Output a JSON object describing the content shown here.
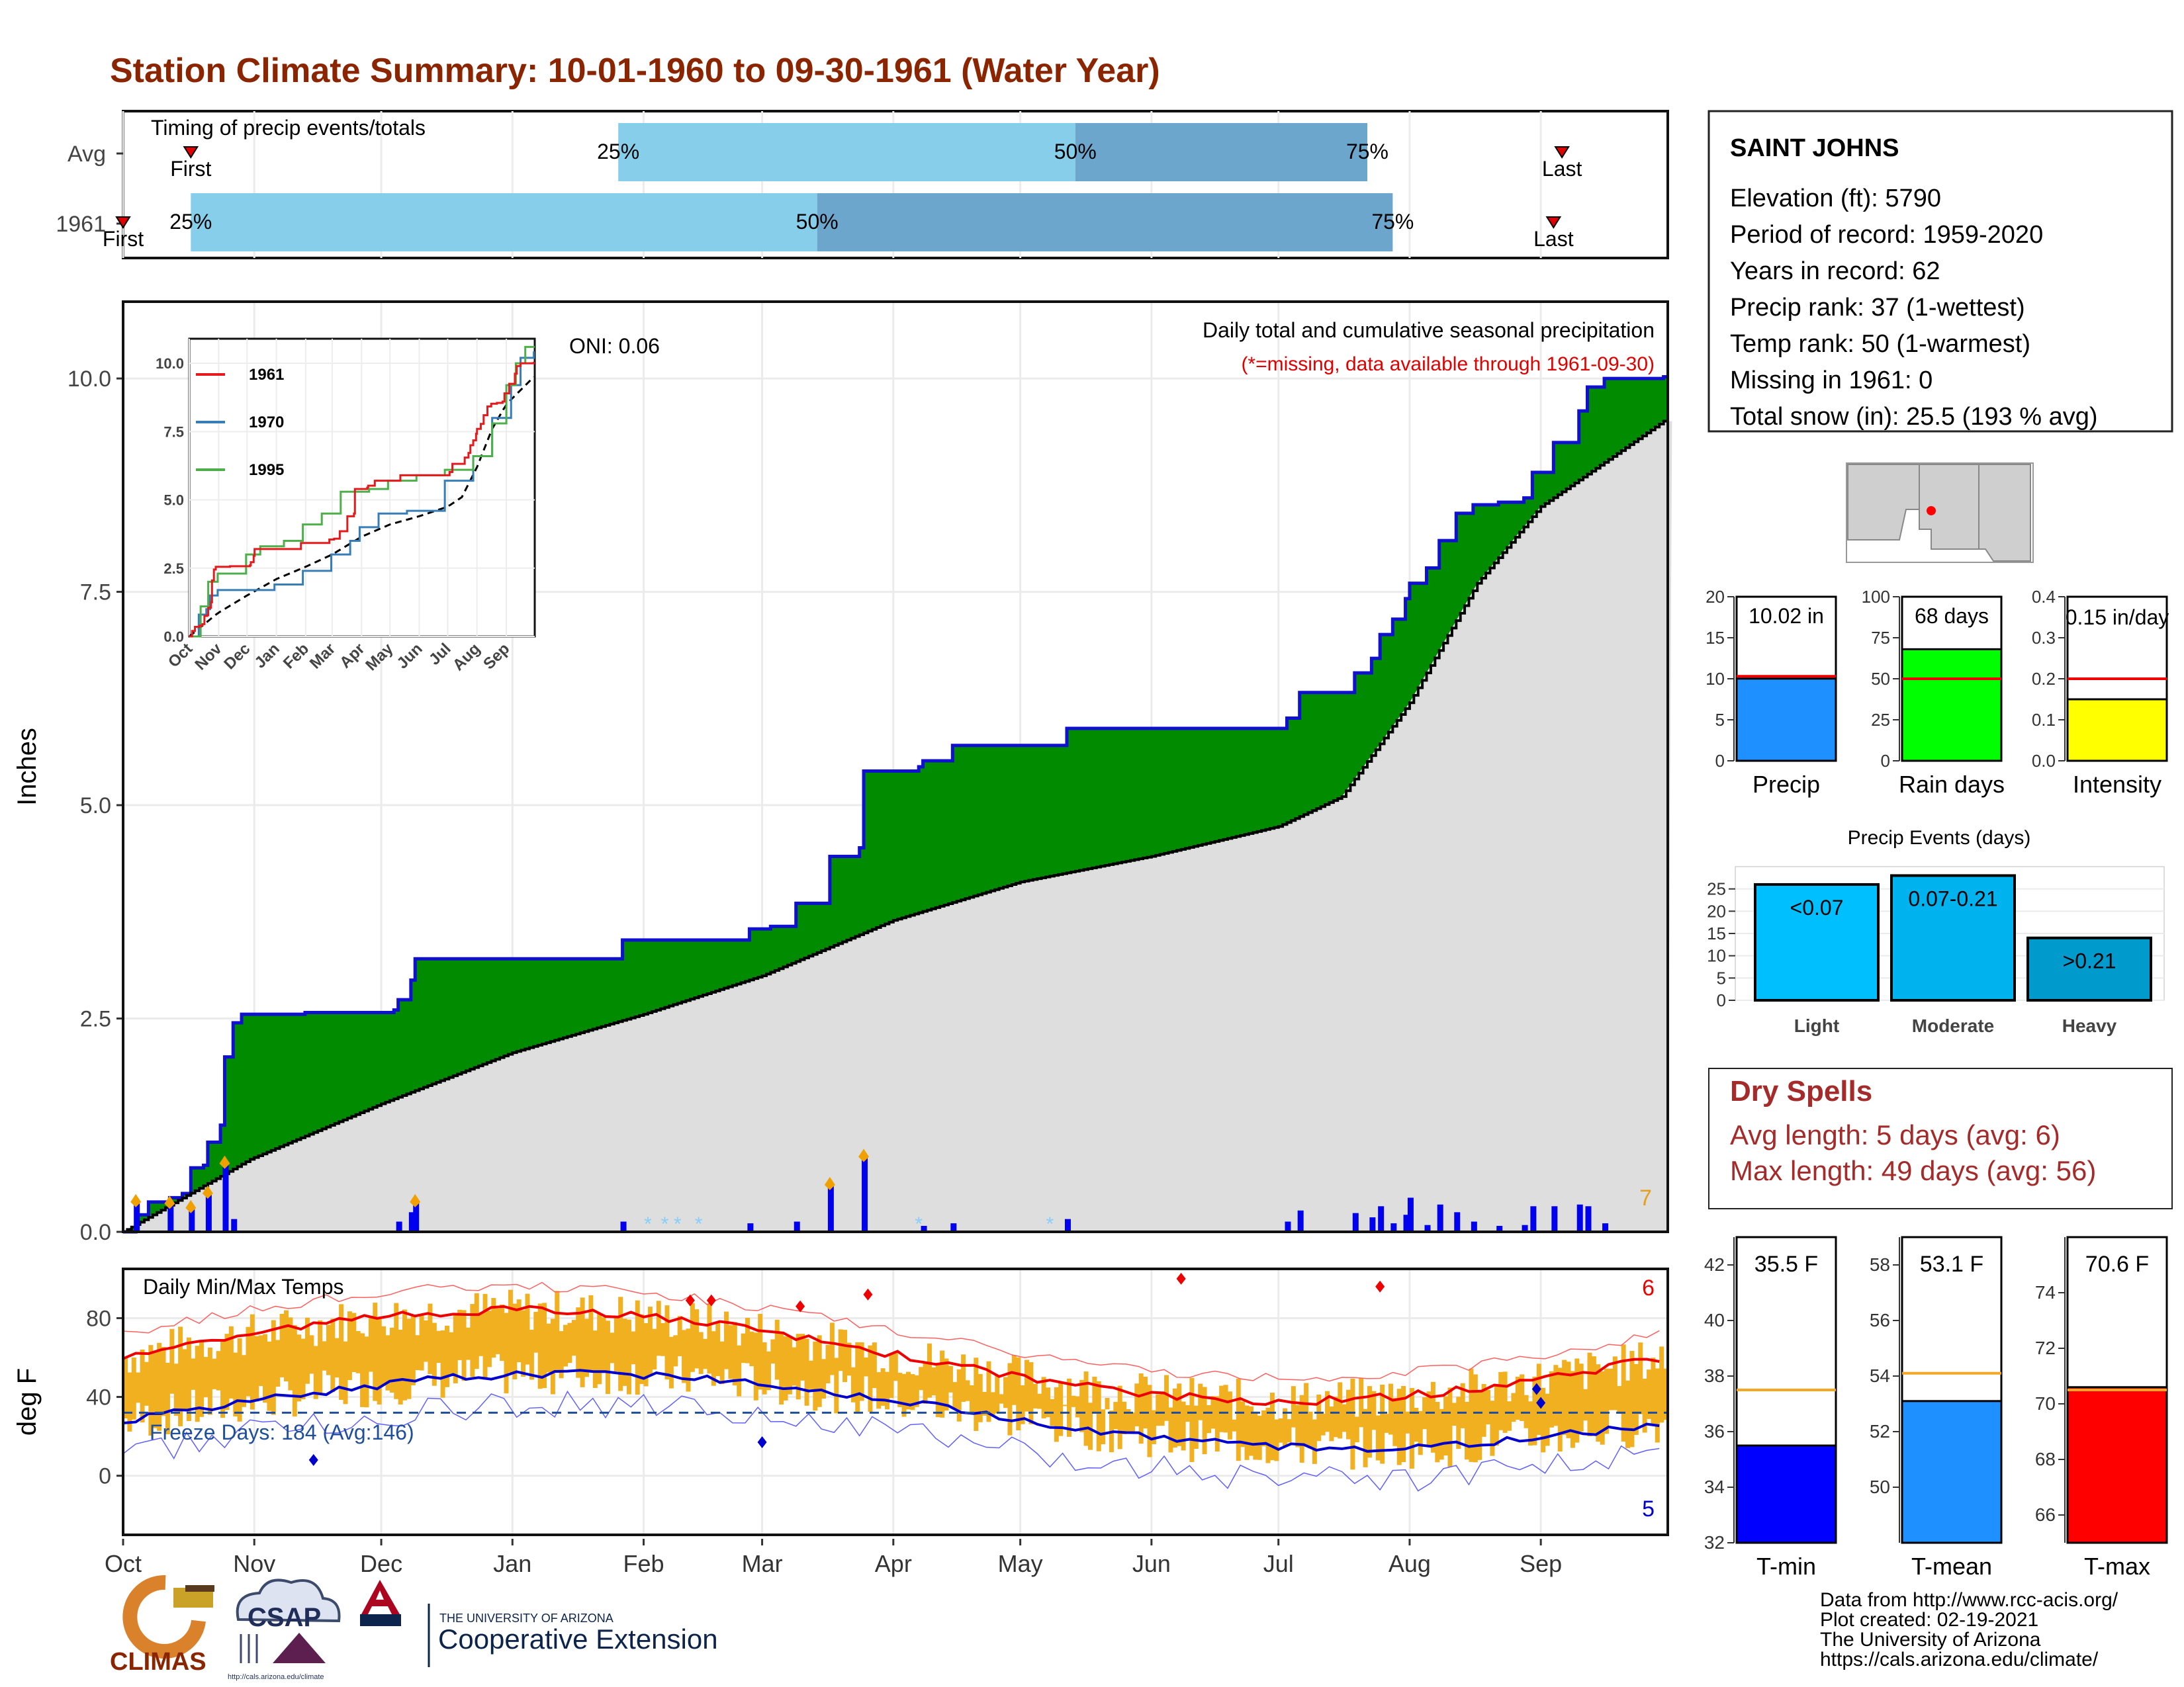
{
  "title": "Station Climate Summary: 10-01-1960 to 09-30-1961 (Water Year)",
  "timing": {
    "title": "Timing of precip events/totals",
    "rows": [
      {
        "label": "Avg",
        "first_label": "First",
        "last_label": "Last",
        "first": 16,
        "p25": 117,
        "p50": 225,
        "p75": 294,
        "last": 340
      },
      {
        "label": "1961",
        "first_label": "First",
        "last_label": "Last",
        "first": 0,
        "p25": 16,
        "p50": 164,
        "p75": 300,
        "last": 338
      }
    ],
    "pct_labels": [
      "25%",
      "50%",
      "75%"
    ]
  },
  "months": [
    "Oct",
    "Nov",
    "Dec",
    "Jan",
    "Feb",
    "Mar",
    "Apr",
    "May",
    "Jun",
    "Jul",
    "Aug",
    "Sep"
  ],
  "month_starts": [
    0,
    31,
    61,
    92,
    123,
    151,
    182,
    212,
    243,
    273,
    304,
    335
  ],
  "precip": {
    "ylabel": "Inches",
    "yticks": [
      "0.0",
      "2.5",
      "5.0",
      "7.5",
      "10.0"
    ],
    "ytick_values": [
      0,
      2.5,
      5,
      7.5,
      10
    ],
    "annotation_title": "Daily total and cumulative seasonal precipitation",
    "annotation_missing": "(*=missing, data available through 1961-09-30)",
    "oni": "ONI: 0.06",
    "corner_count": "7",
    "cumulative_steps": [
      [
        0,
        0
      ],
      [
        3,
        0.2
      ],
      [
        6,
        0.35
      ],
      [
        10,
        0.35
      ],
      [
        11,
        0.4
      ],
      [
        14,
        0.45
      ],
      [
        16,
        0.75
      ],
      [
        19,
        0.78
      ],
      [
        20,
        1.05
      ],
      [
        23,
        1.25
      ],
      [
        24,
        2.05
      ],
      [
        26,
        2.45
      ],
      [
        28,
        2.55
      ],
      [
        43,
        2.57
      ],
      [
        64,
        2.6
      ],
      [
        65,
        2.72
      ],
      [
        67,
        2.72
      ],
      [
        68,
        2.95
      ],
      [
        69,
        3.2
      ],
      [
        117,
        3.2
      ],
      [
        118,
        3.42
      ],
      [
        147,
        3.42
      ],
      [
        148,
        3.55
      ],
      [
        153,
        3.58
      ],
      [
        158,
        3.58
      ],
      [
        159,
        3.85
      ],
      [
        166,
        3.85
      ],
      [
        167,
        4.4
      ],
      [
        174,
        4.5
      ],
      [
        175,
        5.4
      ],
      [
        188,
        5.45
      ],
      [
        189,
        5.52
      ],
      [
        195,
        5.52
      ],
      [
        196,
        5.7
      ],
      [
        222,
        5.7
      ],
      [
        223,
        5.9
      ],
      [
        274,
        5.9
      ],
      [
        275,
        6.02
      ],
      [
        278,
        6.32
      ],
      [
        290,
        6.32
      ],
      [
        291,
        6.55
      ],
      [
        295,
        6.72
      ],
      [
        297,
        7.0
      ],
      [
        300,
        7.18
      ],
      [
        303,
        7.42
      ],
      [
        304,
        7.6
      ],
      [
        308,
        7.78
      ],
      [
        311,
        8.1
      ],
      [
        315,
        8.42
      ],
      [
        319,
        8.52
      ],
      [
        325,
        8.55
      ],
      [
        331,
        8.6
      ],
      [
        333,
        8.9
      ],
      [
        338,
        9.25
      ],
      [
        344,
        9.62
      ],
      [
        346,
        9.9
      ],
      [
        350,
        10.0
      ],
      [
        364,
        10.02
      ]
    ],
    "normal_cumulative": [
      [
        0,
        0
      ],
      [
        30,
        0.85
      ],
      [
        61,
        1.5
      ],
      [
        92,
        2.1
      ],
      [
        123,
        2.55
      ],
      [
        151,
        3.0
      ],
      [
        182,
        3.65
      ],
      [
        212,
        4.1
      ],
      [
        243,
        4.4
      ],
      [
        273,
        4.75
      ],
      [
        288,
        5.1
      ],
      [
        304,
        6.2
      ],
      [
        320,
        7.6
      ],
      [
        335,
        8.5
      ],
      [
        364,
        9.5
      ]
    ],
    "daily": [
      [
        3,
        0.35
      ],
      [
        11,
        0.33
      ],
      [
        16,
        0.28
      ],
      [
        20,
        0.45
      ],
      [
        24,
        0.8
      ],
      [
        26,
        0.15
      ],
      [
        65,
        0.12
      ],
      [
        68,
        0.23
      ],
      [
        69,
        0.35
      ],
      [
        118,
        0.12
      ],
      [
        148,
        0.1
      ],
      [
        159,
        0.12
      ],
      [
        167,
        0.55
      ],
      [
        175,
        0.88
      ],
      [
        189,
        0.07
      ],
      [
        196,
        0.1
      ],
      [
        223,
        0.15
      ],
      [
        275,
        0.12
      ],
      [
        278,
        0.25
      ],
      [
        291,
        0.22
      ],
      [
        295,
        0.17
      ],
      [
        297,
        0.3
      ],
      [
        300,
        0.1
      ],
      [
        303,
        0.2
      ],
      [
        304,
        0.4
      ],
      [
        308,
        0.08
      ],
      [
        311,
        0.32
      ],
      [
        315,
        0.23
      ],
      [
        319,
        0.12
      ],
      [
        325,
        0.07
      ],
      [
        331,
        0.08
      ],
      [
        333,
        0.3
      ],
      [
        338,
        0.3
      ],
      [
        344,
        0.32
      ],
      [
        346,
        0.3
      ],
      [
        350,
        0.1
      ]
    ],
    "inset": {
      "yticks": [
        "0.0",
        "2.5",
        "5.0",
        "7.5",
        "10.0"
      ],
      "xticks": [
        "Oct",
        "Nov",
        "Dec",
        "Jan",
        "Feb",
        "Mar",
        "Apr",
        "May",
        "Jun",
        "Jul",
        "Aug",
        "Sep"
      ],
      "legend": [
        {
          "name": "1961",
          "color": "#e41a1c"
        },
        {
          "name": "1970",
          "color": "#377eb8"
        },
        {
          "name": "1995",
          "color": "#4daf4a"
        }
      ]
    }
  },
  "temp": {
    "ylabel": "deg F",
    "title": "Daily Min/Max Temps",
    "yticks": [
      "0",
      "40",
      "80"
    ],
    "ytick_values": [
      0,
      40,
      80
    ],
    "freeze_label": "Freeze Days: 184 (Avg:146)",
    "freeze_line": 32,
    "count_max": "6",
    "count_min": "5"
  },
  "station": {
    "name": "SAINT JOHNS",
    "lines": [
      "Elevation (ft): 5790",
      "Period of record: 1959-2020",
      "Years in record: 62",
      "Precip rank: 37 (1-wettest)",
      "Temp rank: 50 (1-warmest)",
      "Missing in 1961: 0",
      "Total snow (in): 25.5 (193 % avg)"
    ]
  },
  "summary_bars": [
    {
      "label": "Precip",
      "value_label": "10.02 in",
      "value": 10.02,
      "avg": 10.3,
      "max": 20,
      "ticks": [
        "0",
        "5",
        "10",
        "15",
        "20"
      ],
      "color": "#1e90ff"
    },
    {
      "label": "Rain days",
      "value_label": "68 days",
      "value": 68,
      "avg": 50,
      "max": 100,
      "ticks": [
        "0",
        "25",
        "50",
        "75",
        "100"
      ],
      "color": "#00ff00"
    },
    {
      "label": "Intensity",
      "value_label": "0.15 in/day",
      "value": 0.15,
      "avg": 0.2,
      "max": 0.4,
      "ticks": [
        "0.0",
        "0.1",
        "0.2",
        "0.3",
        "0.4"
      ],
      "color": "#ffff00"
    }
  ],
  "events": {
    "title": "Precip Events (days)",
    "yticks": [
      "0",
      "5",
      "10",
      "15",
      "20",
      "25"
    ],
    "bars": [
      {
        "category": "Light",
        "label": "<0.07",
        "value": 26,
        "color": "#00bfff"
      },
      {
        "category": "Moderate",
        "label": "0.07-0.21",
        "value": 28,
        "color": "#00b2ee"
      },
      {
        "category": "Heavy",
        "label": ">0.21",
        "value": 14,
        "color": "#009acd"
      }
    ]
  },
  "dry_spells": {
    "title": "Dry Spells",
    "avg_line": "Avg length: 5 days (avg: 6)",
    "max_line": "Max length: 49 days (avg: 56)"
  },
  "temp_bars": [
    {
      "label": "T-min",
      "value_label": "35.5 F",
      "value": 35.5,
      "avg": 37.5,
      "min": 32,
      "max": 43,
      "ticks": [
        "32",
        "34",
        "36",
        "38",
        "40",
        "42"
      ],
      "color": "#0000ff"
    },
    {
      "label": "T-mean",
      "value_label": "53.1 F",
      "value": 53.1,
      "avg": 54.1,
      "min": 48,
      "max": 59,
      "ticks": [
        "50",
        "52",
        "54",
        "56",
        "58"
      ],
      "color": "#1e90ff"
    },
    {
      "label": "T-max",
      "value_label": "70.6 F",
      "value": 70.6,
      "avg": 70.5,
      "min": 65,
      "max": 76,
      "ticks": [
        "66",
        "68",
        "70",
        "72",
        "74"
      ],
      "color": "#ff0000"
    }
  ],
  "footer": {
    "lines": [
      "Data from http://www.rcc-acis.org/",
      "Plot created: 02-19-2021",
      "The University of Arizona",
      "https://cals.arizona.edu/climate/"
    ],
    "logos": {
      "climas": "CLIMAS",
      "csap": "CSAP",
      "csap_url": "http://cals.arizona.edu/climate",
      "ua_small": "THE UNIVERSITY OF ARIZONA",
      "ua_big": "Cooperative Extension"
    }
  }
}
